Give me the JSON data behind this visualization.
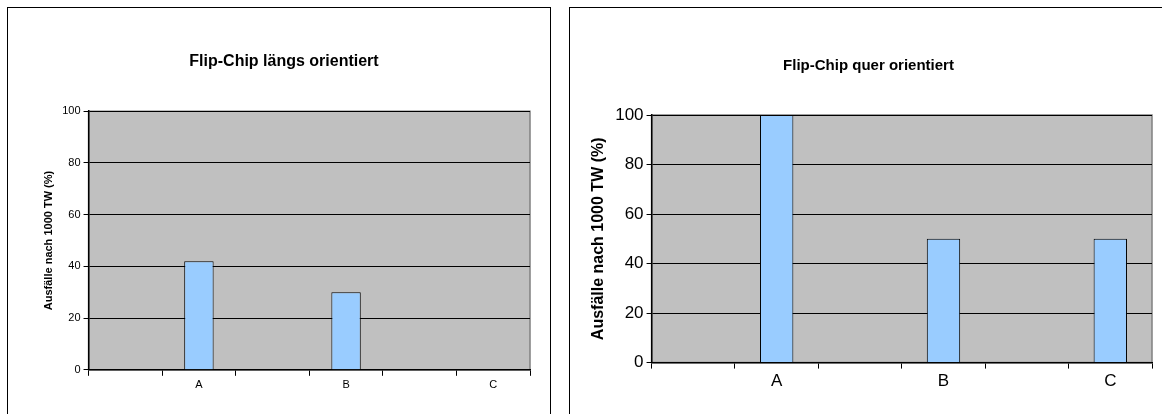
{
  "chart_data": [
    {
      "type": "bar",
      "title": "Flip-Chip längs orientiert",
      "ylabel": "Ausfälle nach 1000 TW (%)",
      "categories": [
        null,
        "A",
        null,
        "B",
        null,
        "C"
      ],
      "values": [
        null,
        42,
        null,
        30,
        null,
        0
      ],
      "color": "#99ccff",
      "ylim": [
        0,
        100
      ],
      "yticks": [
        0,
        20,
        40,
        60,
        80,
        100
      ],
      "grid": "y",
      "legend": false
    },
    {
      "type": "bar",
      "title": "Flip-Chip quer orientiert",
      "ylabel": "Ausfälle nach 1000 TW (%)",
      "categories": [
        null,
        "A",
        null,
        "B",
        null,
        "C"
      ],
      "values": [
        null,
        100,
        null,
        50,
        null,
        50
      ],
      "color": "#99ccff",
      "ylim": [
        0,
        100
      ],
      "yticks": [
        0,
        20,
        40,
        60,
        80,
        100
      ],
      "grid": "y",
      "legend": false
    }
  ]
}
